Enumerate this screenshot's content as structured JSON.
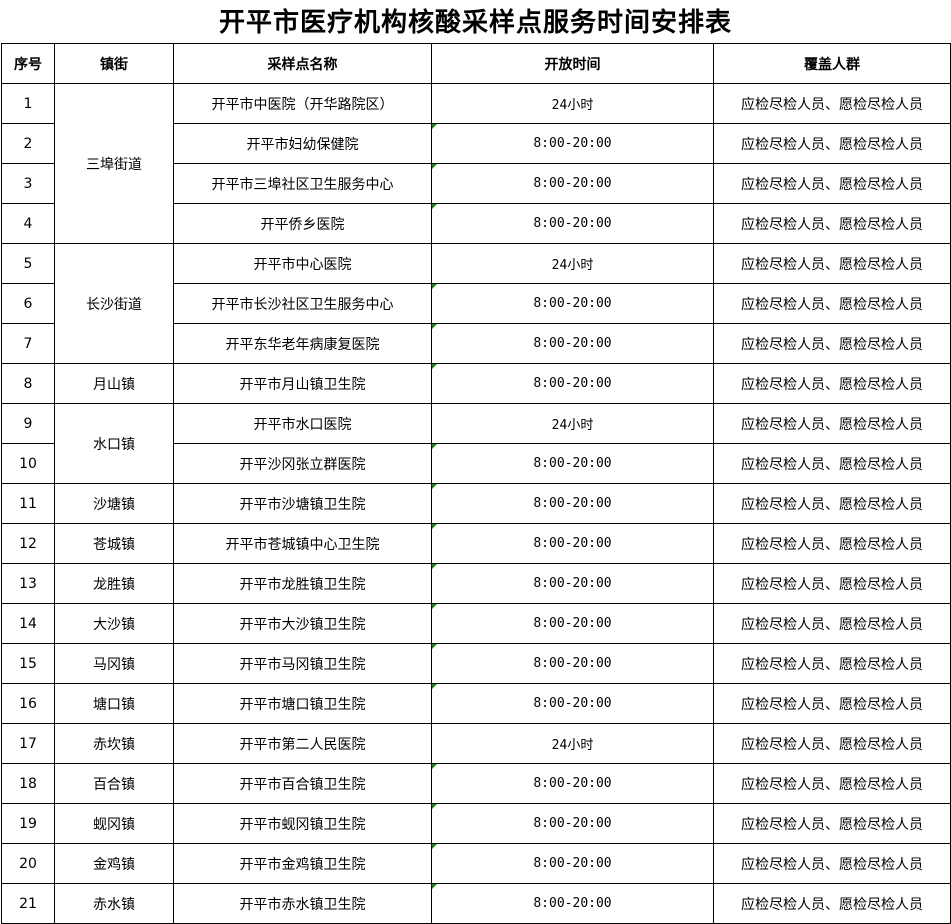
{
  "title": "开平市医疗机构核酸采样点服务时间安排表",
  "headers": [
    "序号",
    "镇街",
    "采样点名称",
    "开放时间",
    "覆盖人群"
  ],
  "marker_color": "#1a8a1a",
  "rows": [
    {
      "no": "1",
      "town": "三埠街道",
      "span": 4,
      "site": "开平市中医院（开华路院区）",
      "time": "24小时",
      "people": "应检尽检人员、愿检尽检人员"
    },
    {
      "no": "2",
      "site": "开平市妇幼保健院",
      "time": "8:00-20:00",
      "people": "应检尽检人员、愿检尽检人员"
    },
    {
      "no": "3",
      "site": "开平市三埠社区卫生服务中心",
      "time": "8:00-20:00",
      "people": "应检尽检人员、愿检尽检人员"
    },
    {
      "no": "4",
      "site": "开平侨乡医院",
      "time": "8:00-20:00",
      "people": "应检尽检人员、愿检尽检人员"
    },
    {
      "no": "5",
      "town": "长沙街道",
      "span": 3,
      "site": "开平市中心医院",
      "time": "24小时",
      "people": "应检尽检人员、愿检尽检人员"
    },
    {
      "no": "6",
      "site": "开平市长沙社区卫生服务中心",
      "time": "8:00-20:00",
      "people": "应检尽检人员、愿检尽检人员"
    },
    {
      "no": "7",
      "site": "开平东华老年病康复医院",
      "time": "8:00-20:00",
      "people": "应检尽检人员、愿检尽检人员"
    },
    {
      "no": "8",
      "town": "月山镇",
      "span": 1,
      "site": "开平市月山镇卫生院",
      "time": "8:00-20:00",
      "people": "应检尽检人员、愿检尽检人员"
    },
    {
      "no": "9",
      "town": "水口镇",
      "span": 2,
      "site": "开平市水口医院",
      "time": "24小时",
      "people": "应检尽检人员、愿检尽检人员"
    },
    {
      "no": "10",
      "site": "开平沙冈张立群医院",
      "time": "8:00-20:00",
      "people": "应检尽检人员、愿检尽检人员"
    },
    {
      "no": "11",
      "town": "沙塘镇",
      "span": 1,
      "site": "开平市沙塘镇卫生院",
      "time": "8:00-20:00",
      "people": "应检尽检人员、愿检尽检人员"
    },
    {
      "no": "12",
      "town": "苍城镇",
      "span": 1,
      "site": "开平市苍城镇中心卫生院",
      "time": "8:00-20:00",
      "people": "应检尽检人员、愿检尽检人员"
    },
    {
      "no": "13",
      "town": "龙胜镇",
      "span": 1,
      "site": "开平市龙胜镇卫生院",
      "time": "8:00-20:00",
      "people": "应检尽检人员、愿检尽检人员"
    },
    {
      "no": "14",
      "town": "大沙镇",
      "span": 1,
      "site": "开平市大沙镇卫生院",
      "time": "8:00-20:00",
      "people": "应检尽检人员、愿检尽检人员"
    },
    {
      "no": "15",
      "town": "马冈镇",
      "span": 1,
      "site": "开平市马冈镇卫生院",
      "time": "8:00-20:00",
      "people": "应检尽检人员、愿检尽检人员"
    },
    {
      "no": "16",
      "town": "塘口镇",
      "span": 1,
      "site": "开平市塘口镇卫生院",
      "time": "8:00-20:00",
      "people": "应检尽检人员、愿检尽检人员"
    },
    {
      "no": "17",
      "town": "赤坎镇",
      "span": 1,
      "site": "开平市第二人民医院",
      "time": "24小时",
      "people": "应检尽检人员、愿检尽检人员"
    },
    {
      "no": "18",
      "town": "百合镇",
      "span": 1,
      "site": "开平市百合镇卫生院",
      "time": "8:00-20:00",
      "people": "应检尽检人员、愿检尽检人员"
    },
    {
      "no": "19",
      "town": "蚬冈镇",
      "span": 1,
      "site": "开平市蚬冈镇卫生院",
      "time": "8:00-20:00",
      "people": "应检尽检人员、愿检尽检人员"
    },
    {
      "no": "20",
      "town": "金鸡镇",
      "span": 1,
      "site": "开平市金鸡镇卫生院",
      "time": "8:00-20:00",
      "people": "应检尽检人员、愿检尽检人员"
    },
    {
      "no": "21",
      "town": "赤水镇",
      "span": 1,
      "site": "开平市赤水镇卫生院",
      "time": "8:00-20:00",
      "people": "应检尽检人员、愿检尽检人员"
    }
  ]
}
